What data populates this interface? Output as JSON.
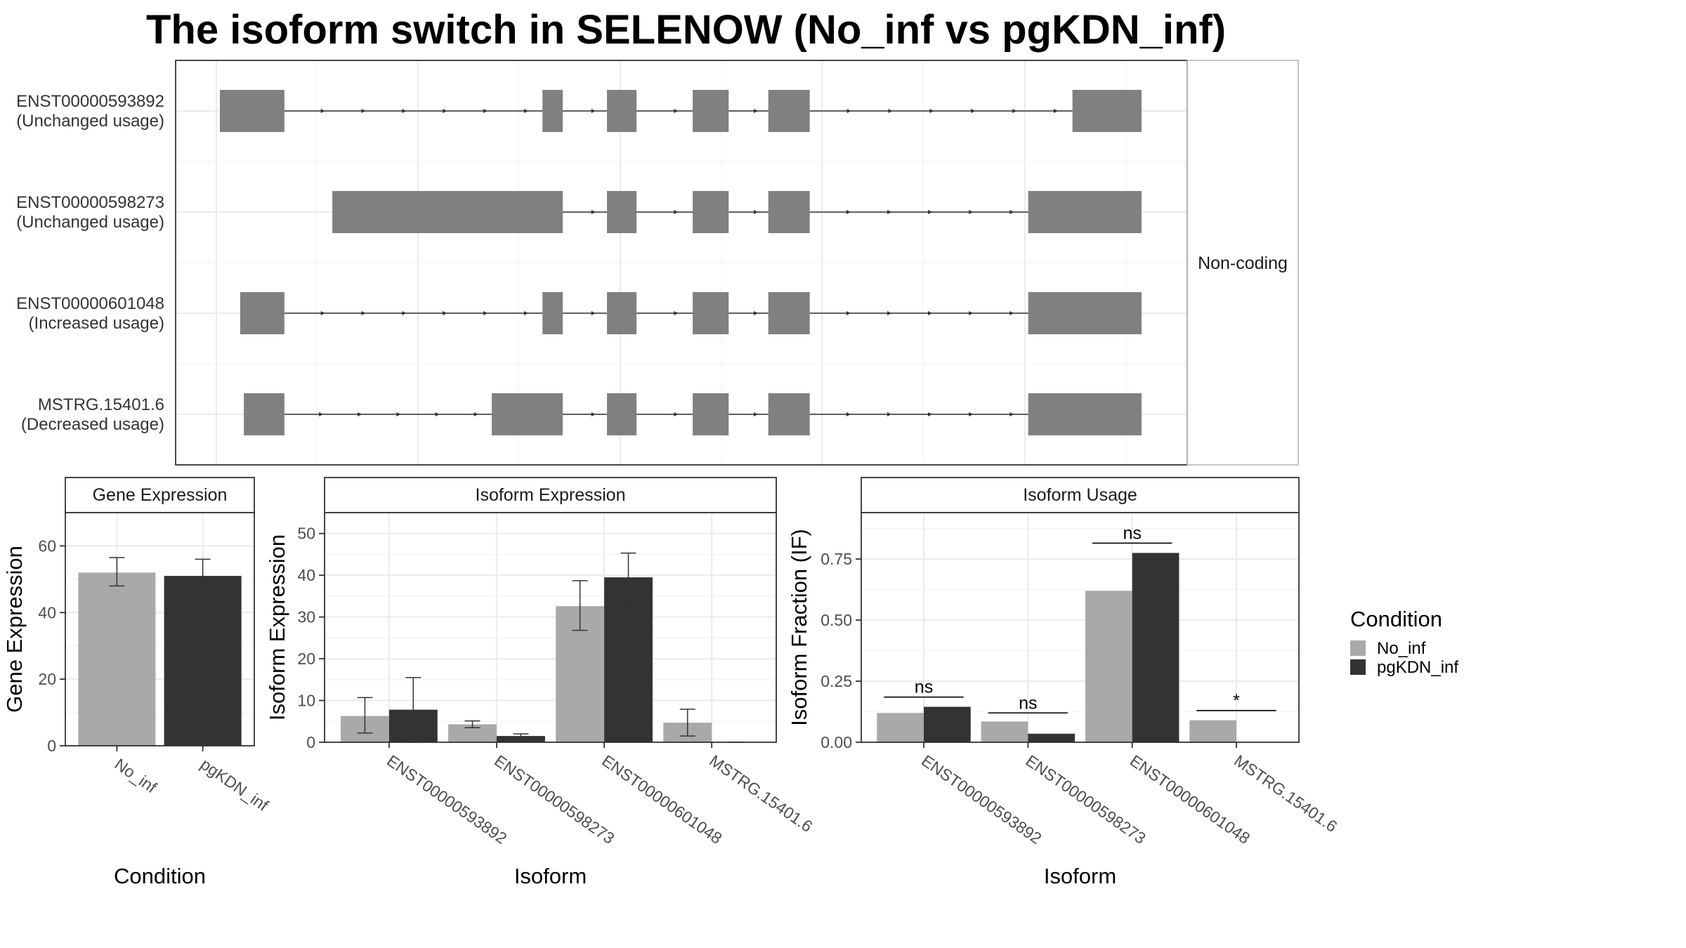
{
  "title": "The isoform switch in SELENOW (No_inf vs pgKDN_inf)",
  "colors": {
    "No_inf": "#a9a9a9",
    "pgKDN_inf": "#333333",
    "exon": "#808080",
    "intron": "#333333"
  },
  "chart_data": [
    {
      "type": "gene-structure",
      "strip_label": "Non-coding",
      "xlim": [
        0,
        1000
      ],
      "transcripts": [
        {
          "id": "ENST00000593892",
          "usage": "(Unchanged usage)",
          "exons": [
            [
              0,
              70
            ],
            [
              350,
              372
            ],
            [
              420,
              452
            ],
            [
              513,
              552
            ],
            [
              595,
              640
            ],
            [
              925,
              1000
            ]
          ]
        },
        {
          "id": "ENST00000598273",
          "usage": "(Unchanged usage)",
          "exons": [
            [
              122,
              372
            ],
            [
              420,
              452
            ],
            [
              513,
              552
            ],
            [
              595,
              640
            ],
            [
              877,
              1000
            ]
          ]
        },
        {
          "id": "ENST00000601048",
          "usage": "(Increased usage)",
          "exons": [
            [
              22,
              70
            ],
            [
              350,
              372
            ],
            [
              420,
              452
            ],
            [
              513,
              552
            ],
            [
              595,
              640
            ],
            [
              877,
              1000
            ]
          ]
        },
        {
          "id": "MSTRG.15401.6",
          "usage": "(Decreased usage)",
          "exons": [
            [
              26,
              70
            ],
            [
              295,
              372
            ],
            [
              420,
              452
            ],
            [
              513,
              552
            ],
            [
              595,
              640
            ],
            [
              877,
              1000
            ]
          ]
        }
      ]
    },
    {
      "type": "bar",
      "strip_label": "Gene Expression",
      "xlabel": "Condition",
      "ylabel": "Gene Expression",
      "ylim": [
        0,
        70
      ],
      "yticks": [
        0,
        20,
        40,
        60
      ],
      "categories": [
        "No_inf",
        "pgKDN_inf"
      ],
      "values": [
        52,
        51
      ],
      "error_low": [
        48,
        47
      ],
      "error_high": [
        56.5,
        56
      ]
    },
    {
      "type": "bar",
      "strip_label": "Isoform Expression",
      "xlabel": "Isoform",
      "ylabel": "Isoform Expression",
      "ylim": [
        0,
        55
      ],
      "yticks": [
        0,
        10,
        20,
        30,
        40,
        50
      ],
      "categories": [
        "ENST00000593892",
        "ENST00000598273",
        "ENST00000601048",
        "MSTRG.15401.6"
      ],
      "series": [
        {
          "name": "No_inf",
          "values": [
            6.3,
            4.3,
            32.6,
            4.7
          ],
          "error_low": [
            2.2,
            3.5,
            26.8,
            1.5
          ],
          "error_high": [
            10.7,
            5.1,
            38.7,
            7.9
          ]
        },
        {
          "name": "pgKDN_inf",
          "values": [
            7.8,
            1.5,
            39.5,
            0
          ],
          "error_low": [
            0,
            1.0,
            33.8,
            0
          ],
          "error_high": [
            15.5,
            2.0,
            45.3,
            0
          ]
        }
      ]
    },
    {
      "type": "bar",
      "strip_label": "Isoform Usage",
      "xlabel": "Isoform",
      "ylabel": "Isoform Fraction (IF)",
      "ylim": [
        0,
        0.94
      ],
      "yticks": [
        "0.00",
        "0.25",
        "0.50",
        "0.75"
      ],
      "categories": [
        "ENST00000593892",
        "ENST00000598273",
        "ENST00000601048",
        "MSTRG.15401.6"
      ],
      "series": [
        {
          "name": "No_inf",
          "values": [
            0.12,
            0.085,
            0.62,
            0.09
          ]
        },
        {
          "name": "pgKDN_inf",
          "values": [
            0.145,
            0.035,
            0.775,
            0
          ]
        }
      ],
      "significance": [
        {
          "label": "ns",
          "y": 0.185
        },
        {
          "label": "ns",
          "y": 0.12
        },
        {
          "label": "ns",
          "y": 0.815
        },
        {
          "label": "*",
          "y": 0.13
        }
      ]
    }
  ],
  "legend": {
    "title": "Condition",
    "items": [
      "No_inf",
      "pgKDN_inf"
    ],
    "placement": "right"
  }
}
